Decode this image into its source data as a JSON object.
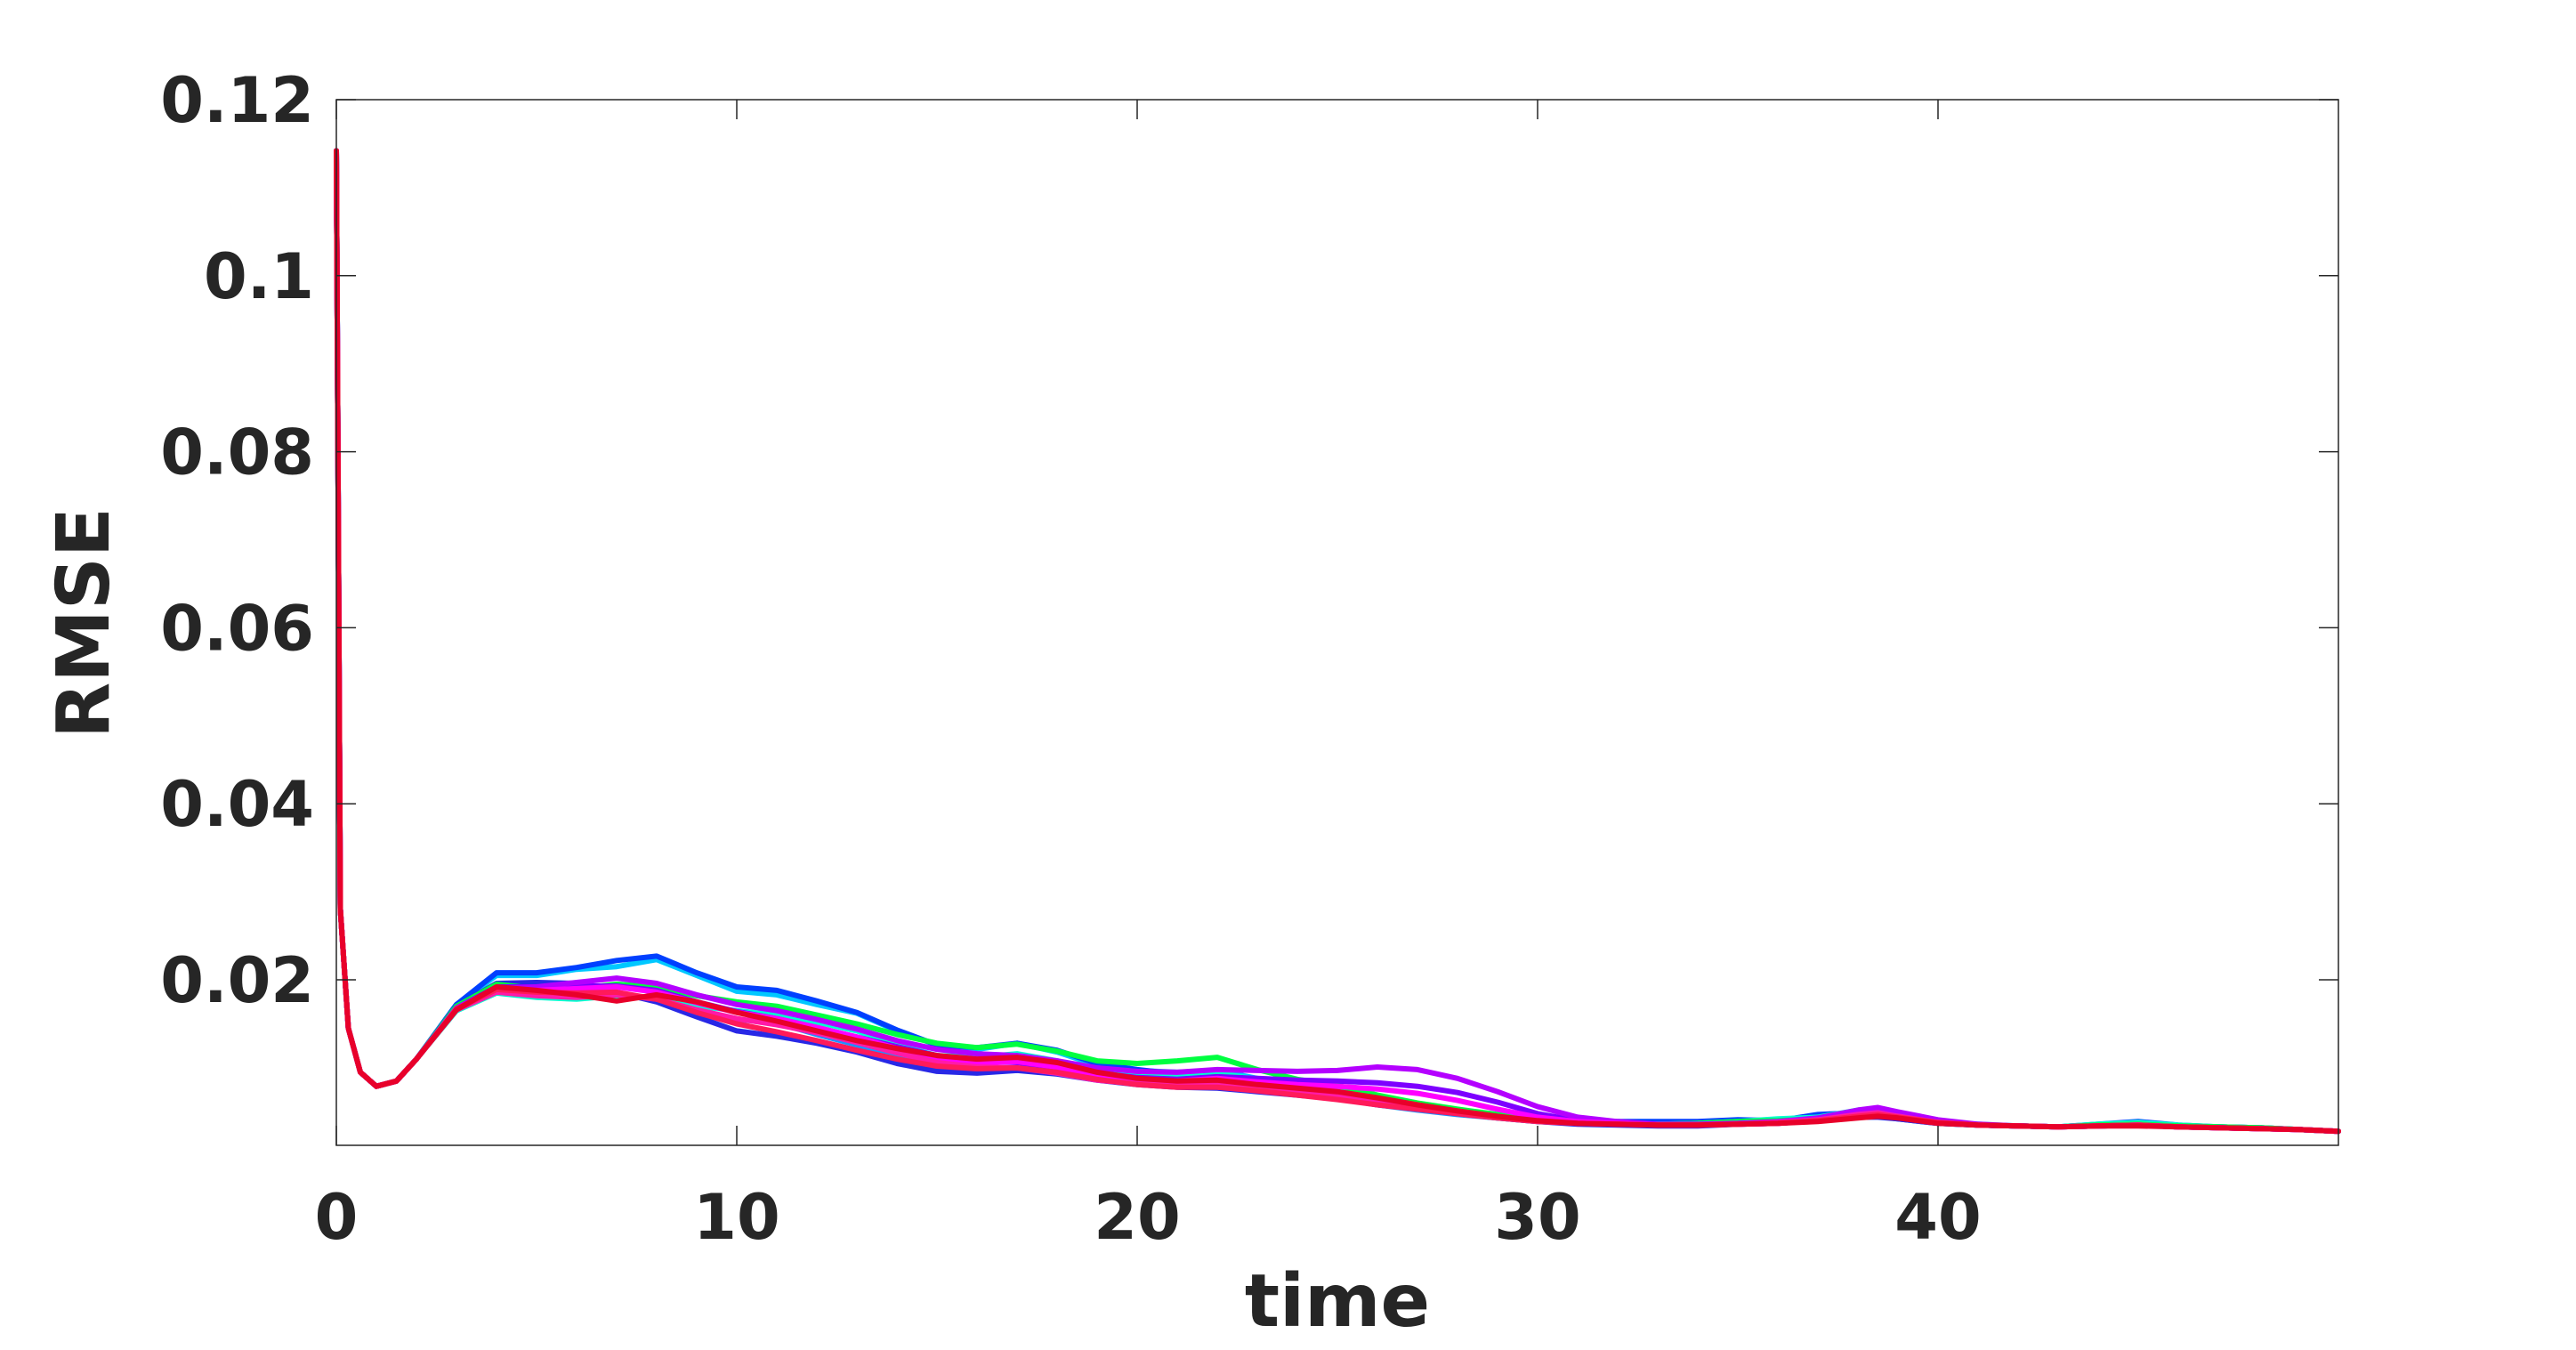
{
  "chart_data": {
    "type": "line",
    "title": "",
    "xlabel": "time",
    "ylabel": "RMSE",
    "xlim": [
      0,
      50
    ],
    "ylim": [
      0.0012,
      0.12
    ],
    "grid": false,
    "legend": "none",
    "x_ticks": [
      0,
      10,
      20,
      30,
      40
    ],
    "x_tick_labels": [
      "0",
      "10",
      "20",
      "30",
      "40"
    ],
    "y_ticks": [
      0.02,
      0.04,
      0.06,
      0.08,
      0.1,
      0.12
    ],
    "y_tick_labels": [
      "0.02",
      "0.04",
      "0.06",
      "0.08",
      "0.1",
      "0.12"
    ],
    "series_colors": [
      "#00c8ff",
      "#1e90ff",
      "#0040ff",
      "#2828e6",
      "#00ffd0",
      "#00ff40",
      "#7d00ff",
      "#b400ff",
      "#ff00ff",
      "#ff1aa8",
      "#ff1a5a",
      "#e8002a"
    ],
    "x": [
      0,
      0.1,
      0.3,
      0.6,
      1,
      1.5,
      2,
      3,
      4,
      5,
      6,
      7,
      8,
      9,
      10,
      11,
      12,
      13,
      14,
      15,
      16,
      17,
      18,
      19,
      20,
      21,
      22,
      23,
      24,
      25,
      26,
      27,
      28,
      29,
      30,
      31,
      32,
      33,
      34,
      35,
      36,
      37,
      38,
      38.5,
      39,
      40,
      41,
      42,
      43,
      44,
      45,
      46,
      47,
      48,
      49,
      50
    ],
    "series": [
      {
        "values": [
          0.1142,
          0.028,
          0.0145,
          0.0095,
          0.0079,
          0.0085,
          0.011,
          0.0172,
          0.0205,
          0.0205,
          0.0212,
          0.0215,
          0.0223,
          0.0205,
          0.0187,
          0.0183,
          0.0172,
          0.0162,
          0.0142,
          0.0126,
          0.0121,
          0.0128,
          0.0118,
          0.0103,
          0.0097,
          0.0095,
          0.0097,
          0.0088,
          0.0083,
          0.0078,
          0.0066,
          0.0058,
          0.0052,
          0.0046,
          0.0041,
          0.0038,
          0.0038,
          0.0036,
          0.0038,
          0.004,
          0.0039,
          0.0043,
          0.0046,
          0.0045,
          0.0043,
          0.0037,
          0.0035,
          0.0034,
          0.0033,
          0.0035,
          0.0037,
          0.0034,
          0.0033,
          0.0032,
          0.003,
          0.0028
        ]
      },
      {
        "values": [
          0.1142,
          0.028,
          0.0145,
          0.0095,
          0.0079,
          0.0085,
          0.011,
          0.0168,
          0.019,
          0.0185,
          0.0184,
          0.0182,
          0.0178,
          0.0165,
          0.0155,
          0.0151,
          0.0138,
          0.0126,
          0.0112,
          0.0099,
          0.0095,
          0.01,
          0.0097,
          0.0088,
          0.0085,
          0.0085,
          0.0089,
          0.0082,
          0.0074,
          0.0066,
          0.0058,
          0.0052,
          0.0047,
          0.0043,
          0.0039,
          0.0037,
          0.0037,
          0.0036,
          0.0037,
          0.0039,
          0.004,
          0.0042,
          0.0047,
          0.0049,
          0.0046,
          0.0038,
          0.0035,
          0.0034,
          0.0033,
          0.0035,
          0.0037,
          0.0034,
          0.0033,
          0.0032,
          0.003,
          0.0028
        ]
      },
      {
        "values": [
          0.1142,
          0.028,
          0.0145,
          0.0095,
          0.0079,
          0.0085,
          0.011,
          0.0172,
          0.0208,
          0.0208,
          0.0214,
          0.0222,
          0.0227,
          0.0208,
          0.0192,
          0.0188,
          0.0176,
          0.0163,
          0.0143,
          0.0126,
          0.0123,
          0.0128,
          0.012,
          0.0105,
          0.0098,
          0.0093,
          0.0091,
          0.0086,
          0.0082,
          0.0077,
          0.0066,
          0.0057,
          0.0051,
          0.0045,
          0.004,
          0.0038,
          0.0039,
          0.0039,
          0.0039,
          0.0041,
          0.004,
          0.0047,
          0.0049,
          0.0045,
          0.0042,
          0.0037,
          0.0035,
          0.0034,
          0.0033,
          0.0036,
          0.0039,
          0.0035,
          0.0033,
          0.0032,
          0.003,
          0.0028
        ]
      },
      {
        "values": [
          0.1142,
          0.028,
          0.0145,
          0.0095,
          0.0079,
          0.0085,
          0.011,
          0.017,
          0.0196,
          0.0197,
          0.0196,
          0.0186,
          0.0175,
          0.0158,
          0.0142,
          0.0136,
          0.0128,
          0.0118,
          0.0105,
          0.0096,
          0.0094,
          0.0097,
          0.0093,
          0.0086,
          0.0081,
          0.0078,
          0.0077,
          0.0073,
          0.0069,
          0.0065,
          0.0058,
          0.0053,
          0.0048,
          0.0043,
          0.0039,
          0.0036,
          0.0035,
          0.0034,
          0.0034,
          0.0036,
          0.0037,
          0.004,
          0.0044,
          0.0044,
          0.0042,
          0.0037,
          0.0035,
          0.0034,
          0.0033,
          0.0034,
          0.0035,
          0.0033,
          0.0032,
          0.0031,
          0.003,
          0.0028
        ]
      },
      {
        "values": [
          0.1142,
          0.028,
          0.0145,
          0.0095,
          0.0079,
          0.0085,
          0.011,
          0.0165,
          0.0185,
          0.018,
          0.0178,
          0.0182,
          0.018,
          0.017,
          0.0165,
          0.016,
          0.0152,
          0.0142,
          0.0126,
          0.0114,
          0.0112,
          0.0116,
          0.0108,
          0.0097,
          0.0092,
          0.0091,
          0.0094,
          0.0087,
          0.008,
          0.0074,
          0.0064,
          0.0056,
          0.005,
          0.0045,
          0.0041,
          0.0038,
          0.0037,
          0.0036,
          0.0037,
          0.0039,
          0.0042,
          0.0044,
          0.0052,
          0.0054,
          0.0049,
          0.0039,
          0.0036,
          0.0034,
          0.0033,
          0.0036,
          0.0038,
          0.0035,
          0.0033,
          0.0032,
          0.003,
          0.0028
        ]
      },
      {
        "values": [
          0.1142,
          0.028,
          0.0145,
          0.0095,
          0.0079,
          0.0085,
          0.011,
          0.017,
          0.0195,
          0.019,
          0.019,
          0.0195,
          0.0192,
          0.0182,
          0.0175,
          0.017,
          0.016,
          0.015,
          0.0138,
          0.0128,
          0.0123,
          0.0127,
          0.0119,
          0.0108,
          0.0105,
          0.0108,
          0.0112,
          0.0098,
          0.0087,
          0.008,
          0.0069,
          0.006,
          0.0053,
          0.0047,
          0.0041,
          0.0038,
          0.0037,
          0.0036,
          0.0037,
          0.0039,
          0.004,
          0.0042,
          0.0046,
          0.0047,
          0.0044,
          0.0038,
          0.0035,
          0.0034,
          0.0033,
          0.0035,
          0.0036,
          0.0034,
          0.0033,
          0.0032,
          0.003,
          0.0028
        ]
      },
      {
        "values": [
          0.1142,
          0.028,
          0.0145,
          0.0095,
          0.0079,
          0.0085,
          0.011,
          0.0168,
          0.0192,
          0.0192,
          0.0193,
          0.0193,
          0.0188,
          0.0175,
          0.0164,
          0.0156,
          0.0146,
          0.0135,
          0.0124,
          0.0114,
          0.0108,
          0.0106,
          0.0101,
          0.0094,
          0.0089,
          0.0087,
          0.009,
          0.0088,
          0.0086,
          0.0085,
          0.0083,
          0.0079,
          0.0072,
          0.0061,
          0.0048,
          0.004,
          0.0037,
          0.0035,
          0.0035,
          0.0036,
          0.0037,
          0.004,
          0.0044,
          0.0046,
          0.0044,
          0.0038,
          0.0035,
          0.0034,
          0.0033,
          0.0034,
          0.0035,
          0.0033,
          0.0032,
          0.0031,
          0.003,
          0.0028
        ]
      },
      {
        "values": [
          0.1142,
          0.028,
          0.0145,
          0.0095,
          0.0079,
          0.0085,
          0.011,
          0.0168,
          0.019,
          0.0192,
          0.0197,
          0.0202,
          0.0196,
          0.0183,
          0.0172,
          0.0165,
          0.0155,
          0.0144,
          0.0131,
          0.0121,
          0.0116,
          0.0114,
          0.0108,
          0.01,
          0.0096,
          0.0095,
          0.0098,
          0.0097,
          0.0096,
          0.0097,
          0.0101,
          0.0098,
          0.0088,
          0.0073,
          0.0056,
          0.0044,
          0.0039,
          0.0036,
          0.0036,
          0.0037,
          0.0039,
          0.0043,
          0.0052,
          0.0055,
          0.005,
          0.0041,
          0.0036,
          0.0034,
          0.0033,
          0.0034,
          0.0035,
          0.0033,
          0.0032,
          0.0031,
          0.003,
          0.0028
        ]
      },
      {
        "values": [
          0.1142,
          0.028,
          0.0145,
          0.0095,
          0.0079,
          0.0085,
          0.011,
          0.0166,
          0.0188,
          0.0188,
          0.019,
          0.0192,
          0.0186,
          0.0174,
          0.0163,
          0.0156,
          0.0146,
          0.0135,
          0.0122,
          0.0111,
          0.0106,
          0.0107,
          0.0101,
          0.0091,
          0.0086,
          0.0085,
          0.0088,
          0.0084,
          0.0081,
          0.0079,
          0.0076,
          0.0071,
          0.0063,
          0.0053,
          0.0044,
          0.0039,
          0.0037,
          0.0035,
          0.0035,
          0.0036,
          0.0037,
          0.004,
          0.0045,
          0.0047,
          0.0044,
          0.0038,
          0.0035,
          0.0034,
          0.0033,
          0.0034,
          0.0035,
          0.0033,
          0.0032,
          0.0031,
          0.003,
          0.0028
        ]
      },
      {
        "values": [
          0.1142,
          0.028,
          0.0145,
          0.0095,
          0.0079,
          0.0085,
          0.011,
          0.0166,
          0.0186,
          0.0182,
          0.018,
          0.0183,
          0.0178,
          0.0166,
          0.0156,
          0.0149,
          0.014,
          0.0129,
          0.0117,
          0.0106,
          0.0101,
          0.01,
          0.0094,
          0.0086,
          0.0082,
          0.0081,
          0.0083,
          0.0078,
          0.0073,
          0.0068,
          0.0061,
          0.0055,
          0.0049,
          0.0044,
          0.004,
          0.0037,
          0.0036,
          0.0035,
          0.0035,
          0.0036,
          0.0038,
          0.0041,
          0.0047,
          0.0049,
          0.0045,
          0.0038,
          0.0035,
          0.0034,
          0.0033,
          0.0034,
          0.0035,
          0.0033,
          0.0032,
          0.0031,
          0.003,
          0.0028
        ]
      },
      {
        "values": [
          0.1142,
          0.028,
          0.0145,
          0.0095,
          0.0079,
          0.0085,
          0.011,
          0.0167,
          0.0189,
          0.0186,
          0.0185,
          0.0186,
          0.0178,
          0.0163,
          0.015,
          0.0141,
          0.0131,
          0.012,
          0.011,
          0.0102,
          0.0099,
          0.01,
          0.0095,
          0.0087,
          0.0081,
          0.0078,
          0.0078,
          0.0074,
          0.0069,
          0.0064,
          0.0058,
          0.0053,
          0.0048,
          0.0043,
          0.0039,
          0.0037,
          0.0036,
          0.0035,
          0.0035,
          0.0036,
          0.0037,
          0.004,
          0.0045,
          0.0047,
          0.0044,
          0.0038,
          0.0035,
          0.0034,
          0.0033,
          0.0034,
          0.0035,
          0.0033,
          0.0032,
          0.0031,
          0.003,
          0.0028
        ]
      },
      {
        "values": [
          0.1142,
          0.028,
          0.0145,
          0.0095,
          0.0079,
          0.0085,
          0.011,
          0.0166,
          0.0192,
          0.0188,
          0.0183,
          0.0176,
          0.0183,
          0.0175,
          0.0163,
          0.0153,
          0.0142,
          0.0131,
          0.0122,
          0.0114,
          0.011,
          0.0112,
          0.0106,
          0.0095,
          0.0088,
          0.0085,
          0.0086,
          0.0081,
          0.0077,
          0.0073,
          0.0066,
          0.0058,
          0.0051,
          0.0045,
          0.004,
          0.0037,
          0.0036,
          0.0035,
          0.0035,
          0.0036,
          0.0037,
          0.0039,
          0.0043,
          0.0045,
          0.0043,
          0.0037,
          0.0035,
          0.0034,
          0.0033,
          0.0034,
          0.0034,
          0.0033,
          0.0032,
          0.0031,
          0.003,
          0.0028
        ]
      }
    ]
  }
}
